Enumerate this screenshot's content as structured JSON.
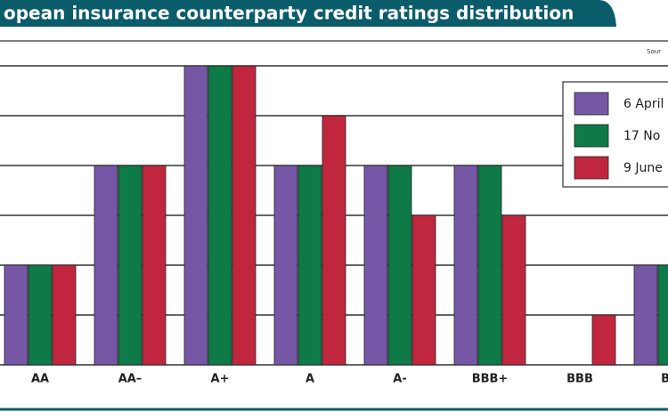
{
  "chart_data": {
    "type": "bar",
    "title": "opean insurance counterparty credit ratings distribution",
    "source": "Sour",
    "categories": [
      "AA",
      "AA–",
      "A+",
      "A",
      "A-",
      "BBB+",
      "BBB",
      "BB"
    ],
    "series": [
      {
        "name": "6 April",
        "color": "#7657a6",
        "values": [
          2,
          4,
          6,
          4,
          4,
          4,
          0,
          2
        ]
      },
      {
        "name": "17 No",
        "color": "#0e7a48",
        "values": [
          2,
          4,
          6,
          4,
          4,
          4,
          0,
          2
        ]
      },
      {
        "name": "9 June",
        "color": "#c0273e",
        "values": [
          2,
          4,
          6,
          5,
          3,
          3,
          1,
          null
        ]
      }
    ],
    "ylim": [
      0,
      6.5
    ],
    "yticks": [
      0,
      1,
      2,
      3,
      4,
      5,
      6
    ],
    "grid": true
  }
}
